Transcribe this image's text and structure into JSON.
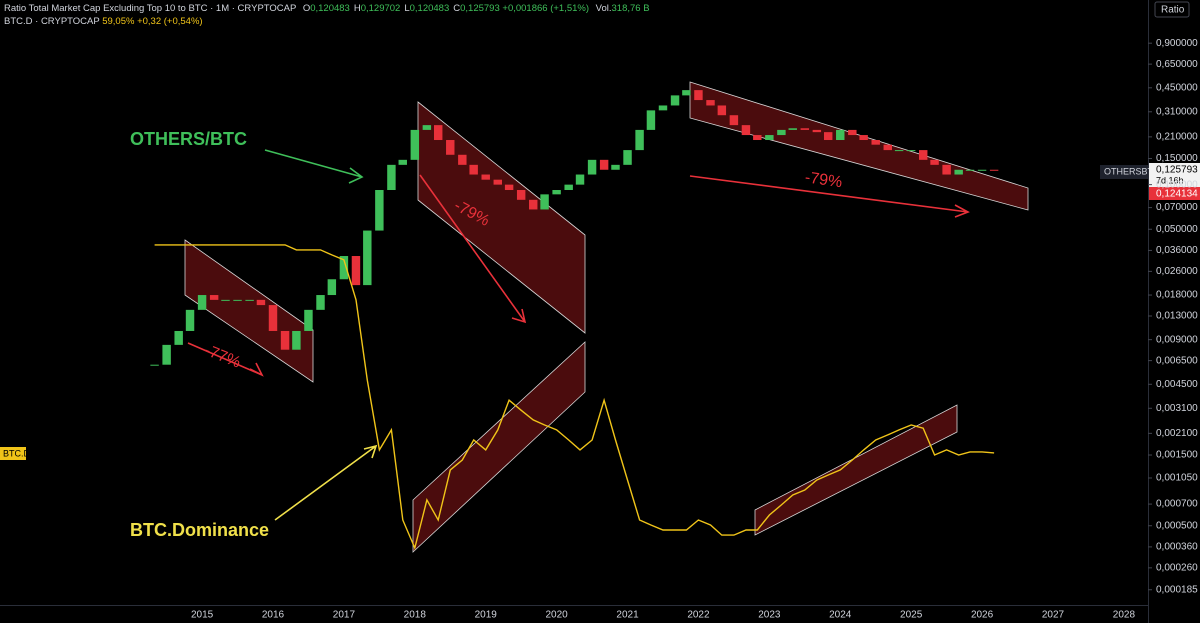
{
  "chart_data": {
    "type": "candlestick",
    "title": "Ratio Total Market Cap Excluding Top 10 to BTC · 1M · CRYPTOCAP",
    "ohlc": [
      {
        "label": "O",
        "value": "0,120483"
      },
      {
        "label": "H",
        "value": "0,129702"
      },
      {
        "label": "L",
        "value": "0,120483"
      },
      {
        "label": "C",
        "value": "0,125793"
      }
    ],
    "change": "+0,001866 (+1,51%)",
    "volume_label": "Vol.",
    "volume": "318,76 B",
    "overlay_legend": {
      "name": "BTC.D · CRYPTOCAP",
      "value": "59,05%",
      "change": "+0,32 (+0,54%)"
    },
    "scale_label": "Ratio",
    "countdown": "7d 16h",
    "low_tag": "0,124134",
    "annotations": [
      "OTHERS/BTC",
      "BTC.Dominance",
      "-77%",
      "-79%",
      "-79%"
    ],
    "log_scale": true,
    "grid": false,
    "xlim": [
      2012.15,
      2028.34
    ],
    "xticks": [
      2015,
      2016,
      2017,
      2018,
      2019,
      2020,
      2021,
      2022,
      2023,
      2024,
      2025,
      2026,
      2027,
      2028
    ],
    "ylim": [
      0.000146,
      1.76
    ],
    "yticks": [
      {
        "value": 0.9,
        "label": "0,900000"
      },
      {
        "value": 0.65,
        "label": "0,650000"
      },
      {
        "value": 0.45,
        "label": "0,450000"
      },
      {
        "value": 0.31,
        "label": "0,310000"
      },
      {
        "value": 0.21,
        "label": "0,210000"
      },
      {
        "value": 0.15,
        "label": "0,150000"
      },
      {
        "value": 0.1,
        "label": "0,100000"
      },
      {
        "value": 0.07,
        "label": "0,070000"
      },
      {
        "value": 0.05,
        "label": "0,050000"
      },
      {
        "value": 0.036,
        "label": "0,036000"
      },
      {
        "value": 0.026,
        "label": "0,026000"
      },
      {
        "value": 0.018,
        "label": "0,018000"
      },
      {
        "value": 0.013,
        "label": "0,013000"
      },
      {
        "value": 0.009,
        "label": "0,009000"
      },
      {
        "value": 0.0065,
        "label": "0,006500"
      },
      {
        "value": 0.0045,
        "label": "0,004500"
      },
      {
        "value": 0.0031,
        "label": "0,003100"
      },
      {
        "value": 0.0021,
        "label": "0,002100"
      },
      {
        "value": 0.0015,
        "label": "0,001500"
      },
      {
        "value": 0.00105,
        "label": "0,001050"
      },
      {
        "value": 0.0007,
        "label": "0,000700"
      },
      {
        "value": 0.0005,
        "label": "0,000500"
      },
      {
        "value": 0.00036,
        "label": "0,000360"
      },
      {
        "value": 0.00026,
        "label": "0,000260"
      },
      {
        "value": 0.000185,
        "label": "0,000185"
      }
    ],
    "y2lim": [
      37.85,
      122.2
    ],
    "x": [
      2014.33,
      2014.5,
      2014.67,
      2014.83,
      2015,
      2015.17,
      2015.33,
      2015.5,
      2015.67,
      2015.83,
      2016,
      2016.17,
      2016.33,
      2016.5,
      2016.67,
      2016.83,
      2017,
      2017.17,
      2017.33,
      2017.5,
      2017.67,
      2017.83,
      2018,
      2018.17,
      2018.33,
      2018.5,
      2018.67,
      2018.83,
      2019,
      2019.17,
      2019.33,
      2019.5,
      2019.67,
      2019.83,
      2020,
      2020.17,
      2020.33,
      2020.5,
      2020.67,
      2020.83,
      2021,
      2021.17,
      2021.33,
      2021.5,
      2021.67,
      2021.83,
      2022,
      2022.17,
      2022.33,
      2022.5,
      2022.67,
      2022.83,
      2023,
      2023.17,
      2023.33,
      2023.5,
      2023.67,
      2023.83,
      2024,
      2024.17,
      2024.33,
      2024.5,
      2024.67,
      2024.83,
      2025,
      2025.17,
      2025.33,
      2025.5,
      2025.67,
      2025.83,
      2026,
      2026.17
    ],
    "series": [
      {
        "name": "OTHERSBTC",
        "type": "candlestick",
        "color": "#3fbf5a",
        "down_color": "#e8313a",
        "values": [
          0.0061,
          0.0083,
          0.0103,
          0.0143,
          0.018,
          0.0167,
          0.0167,
          0.0167,
          0.0167,
          0.0154,
          0.0103,
          0.0077,
          0.0103,
          0.0143,
          0.018,
          0.023,
          0.033,
          0.021,
          0.049,
          0.092,
          0.136,
          0.147,
          0.234,
          0.252,
          0.2,
          0.159,
          0.136,
          0.117,
          0.108,
          0.1,
          0.092,
          0.079,
          0.068,
          0.086,
          0.092,
          0.1,
          0.117,
          0.147,
          0.126,
          0.136,
          0.171,
          0.234,
          0.317,
          0.342,
          0.4,
          0.434,
          0.372,
          0.342,
          0.294,
          0.252,
          0.216,
          0.2,
          0.216,
          0.234,
          0.24,
          0.234,
          0.226,
          0.2,
          0.234,
          0.216,
          0.2,
          0.186,
          0.171,
          0.171,
          0.171,
          0.147,
          0.136,
          0.117,
          0.126,
          0.126,
          0.126,
          0.125793
        ]
      },
      {
        "name": "BTC.D",
        "type": "line",
        "axis": "y2",
        "color": "#f0c419",
        "values": [
          88.06,
          88.06,
          88.06,
          88.06,
          88.06,
          88.06,
          88.06,
          88.06,
          88.06,
          88.06,
          88.06,
          88.06,
          87.36,
          87.36,
          87.36,
          86.66,
          85.97,
          80.4,
          69.2,
          59.47,
          62.26,
          49.7,
          45.8,
          52.5,
          49.7,
          56.68,
          58.07,
          60.86,
          59.47,
          62.26,
          66.4,
          65.0,
          63.65,
          62.95,
          62.26,
          60.86,
          59.47,
          60.86,
          66.4,
          60.86,
          55.28,
          49.7,
          49.0,
          48.3,
          48.3,
          48.3,
          49.7,
          49.0,
          47.6,
          47.6,
          48.3,
          48.3,
          50.4,
          51.8,
          53.19,
          53.89,
          55.28,
          55.98,
          56.68,
          58.07,
          59.47,
          60.86,
          61.56,
          62.26,
          62.95,
          62.5,
          58.77,
          59.47,
          58.77,
          59.19,
          59.19,
          59.05
        ]
      }
    ]
  }
}
